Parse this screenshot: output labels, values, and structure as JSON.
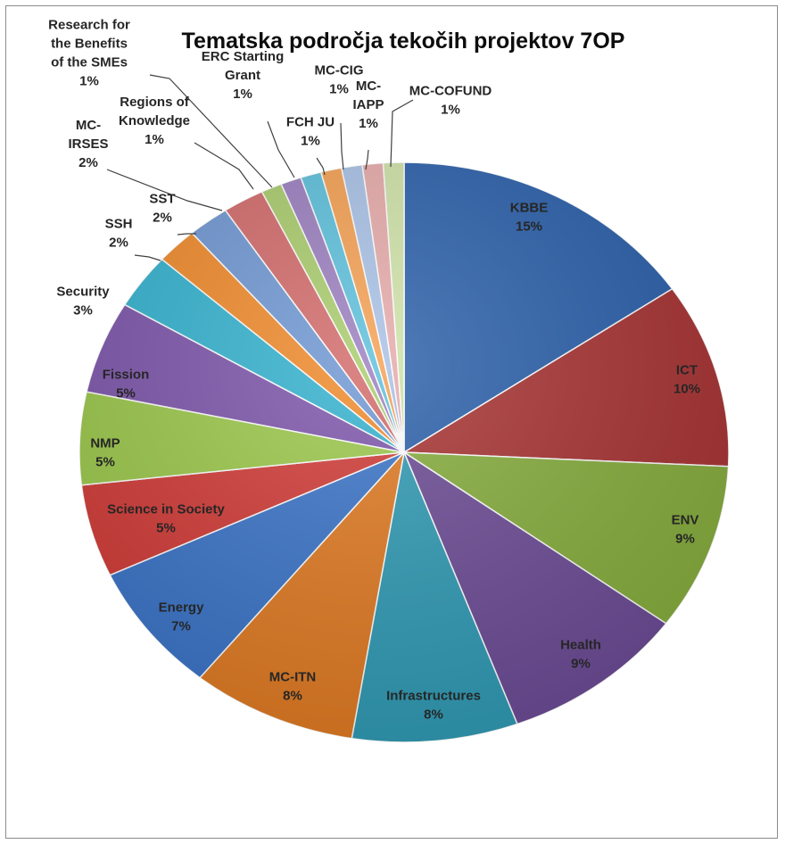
{
  "chart_data": {
    "type": "pie",
    "title": "Tematska področja tekočih projektov 7OP",
    "slices": [
      {
        "name": "KBBE",
        "value": 15,
        "label": [
          "KBBE",
          "15%"
        ],
        "color": "#2a5faa"
      },
      {
        "name": "ICT",
        "value": 10,
        "label": [
          "ICT",
          "10%"
        ],
        "color": "#a83232"
      },
      {
        "name": "ENV",
        "value": 9,
        "label": [
          "ENV",
          "9%"
        ],
        "color": "#86ad3c"
      },
      {
        "name": "Health",
        "value": 9,
        "label": [
          "Health",
          "9%"
        ],
        "color": "#6c4b95"
      },
      {
        "name": "Infrastructures",
        "value": 8,
        "label": [
          "Infrastructures",
          "8%"
        ],
        "color": "#2f9ab4"
      },
      {
        "name": "MC-ITN",
        "value": 8,
        "label": [
          "MC-ITN",
          "8%"
        ],
        "color": "#e07a22"
      },
      {
        "name": "Energy",
        "value": 7,
        "label": [
          "Energy",
          "7%"
        ],
        "color": "#3a74c8"
      },
      {
        "name": "Science in Society",
        "value": 5,
        "label": [
          "Science in Society",
          "5%"
        ],
        "color": "#d13a36"
      },
      {
        "name": "NMP",
        "value": 5,
        "label": [
          "NMP",
          "5%"
        ],
        "color": "#9bc84a"
      },
      {
        "name": "Fission",
        "value": 5,
        "label": [
          "Fission",
          "5%"
        ],
        "color": "#7d55ab"
      },
      {
        "name": "Security",
        "value": 3,
        "label": [
          "Security",
          "3%"
        ],
        "color": "#33b2cf"
      },
      {
        "name": "SSH",
        "value": 2,
        "label": [
          "SSH",
          "2%"
        ],
        "color": "#f08a2a"
      },
      {
        "name": "SST",
        "value": 2,
        "label": [
          "SST",
          "2%"
        ],
        "color": "#6f97d3"
      },
      {
        "name": "MC-IRSES",
        "value": 2,
        "label": [
          "MC-",
          "IRSES",
          "2%"
        ],
        "color": "#d36a6a"
      },
      {
        "name": "Regions of Knowledge",
        "value": 1,
        "label": [
          "Regions of",
          "Knowledge",
          "1%"
        ],
        "color": "#a9cc6c"
      },
      {
        "name": "Research for the Benefits of the SMEs",
        "value": 1,
        "label": [
          "Research for",
          "the Benefits",
          "of the SMEs",
          "1%"
        ],
        "color": "#9b7fc0"
      },
      {
        "name": "ERC Starting Grant",
        "value": 1,
        "label": [
          "ERC Starting",
          "Grant",
          "1%"
        ],
        "color": "#5cc0dc"
      },
      {
        "name": "FCH JU",
        "value": 1,
        "label": [
          "FCH JU",
          "1%"
        ],
        "color": "#f5a052"
      },
      {
        "name": "MC-CIG",
        "value": 1,
        "label": [
          "MC-CIG",
          "1%"
        ],
        "color": "#a9c1e6"
      },
      {
        "name": "MC-IAPP",
        "value": 1,
        "label": [
          "MC-",
          "IAPP",
          "1%"
        ],
        "color": "#e7aaaa"
      },
      {
        "name": "MC-COFUND",
        "value": 1,
        "label": [
          "MC-COFUND",
          "1%"
        ],
        "color": "#cfe3a8"
      }
    ]
  }
}
